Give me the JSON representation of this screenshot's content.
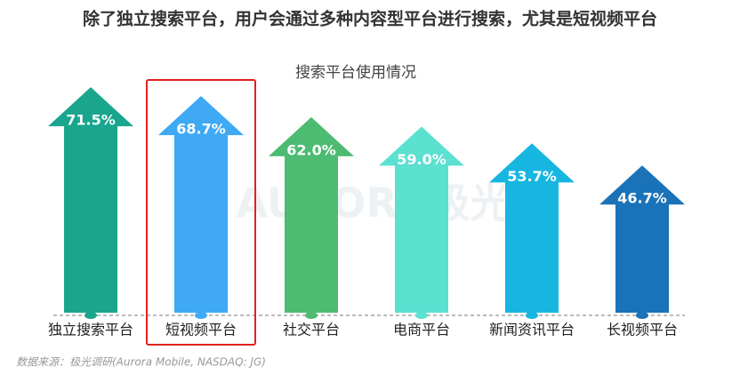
{
  "headline": "除了独立搜索平台，用户会通过多种内容型平台进行搜索，尤其是短视频平台",
  "source": "数据来源：极光调研(Aurora Mobile, NASDAQ: JG)",
  "watermark": "AURORA极光",
  "chart_data": {
    "type": "arrow",
    "title": "搜索平台使用情况",
    "categories": [
      "独立搜索平台",
      "短视频平台",
      "社交平台",
      "电商平台",
      "新闻资讯平台",
      "长视频平台"
    ],
    "values": [
      71.5,
      68.7,
      62.0,
      59.0,
      53.7,
      46.7
    ],
    "value_labels": [
      "71.5%",
      "68.7%",
      "62.0%",
      "59.0%",
      "53.7%",
      "46.7%"
    ],
    "colors": [
      "#1aa58d",
      "#3fa9f5",
      "#4dbb72",
      "#5ce0d0",
      "#17b6e0",
      "#1a72b8"
    ],
    "highlight_index": 1
  }
}
